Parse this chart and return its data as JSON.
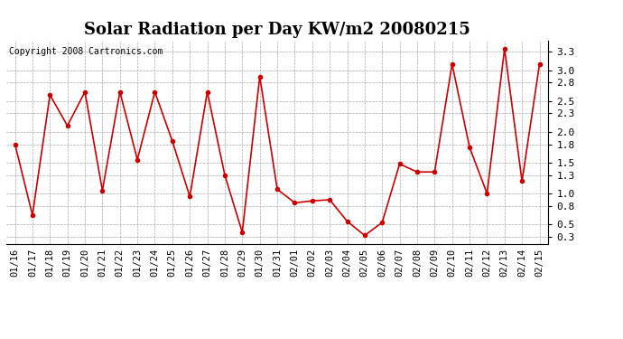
{
  "title": "Solar Radiation per Day KW/m2 20080215",
  "copyright": "Copyright 2008 Cartronics.com",
  "dates": [
    "01/16",
    "01/17",
    "01/18",
    "01/19",
    "01/20",
    "01/21",
    "01/22",
    "01/23",
    "01/24",
    "01/25",
    "01/26",
    "01/27",
    "01/28",
    "01/29",
    "01/30",
    "01/31",
    "02/01",
    "02/02",
    "02/03",
    "02/04",
    "02/05",
    "02/06",
    "02/07",
    "02/08",
    "02/09",
    "02/10",
    "02/11",
    "02/12",
    "02/13",
    "02/14",
    "02/15"
  ],
  "values": [
    1.8,
    0.65,
    2.6,
    2.1,
    2.65,
    1.05,
    2.65,
    1.55,
    2.65,
    1.85,
    0.95,
    2.65,
    1.3,
    0.37,
    2.9,
    1.07,
    0.85,
    0.88,
    0.9,
    0.55,
    0.32,
    0.53,
    1.48,
    1.35,
    1.35,
    3.1,
    1.75,
    1.0,
    3.35,
    1.2,
    3.1
  ],
  "line_color": "#cc0000",
  "marker": "o",
  "bg_color": "#ffffff",
  "plot_bg_color": "#ffffff",
  "grid_color": "#aaaaaa",
  "y_ticks": [
    0.3,
    0.5,
    0.8,
    1.0,
    1.3,
    1.5,
    1.8,
    2.0,
    2.3,
    2.5,
    2.8,
    3.0,
    3.3
  ],
  "ylim": [
    0.18,
    3.48
  ],
  "title_fontsize": 13,
  "copyright_fontsize": 7,
  "tick_fontsize": 7.5
}
